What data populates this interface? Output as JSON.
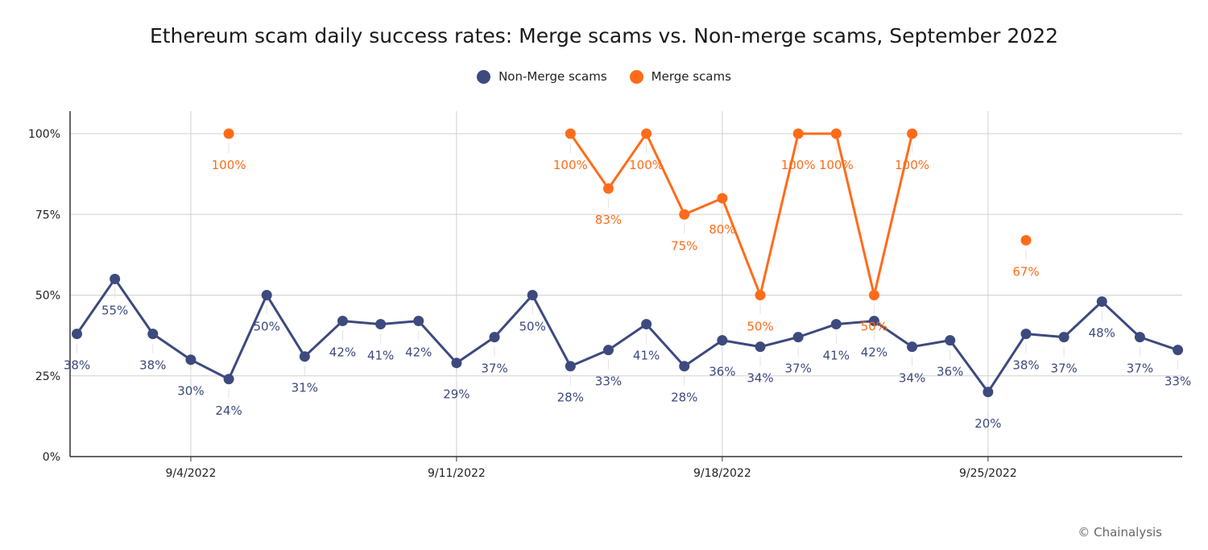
{
  "chart_data": {
    "type": "line",
    "title": "Ethereum scam daily success rates: Merge scams vs. Non-merge scams, September 2022",
    "xlabel": "",
    "ylabel": "",
    "x": [
      "9/1/2022",
      "9/2/2022",
      "9/3/2022",
      "9/4/2022",
      "9/5/2022",
      "9/6/2022",
      "9/7/2022",
      "9/8/2022",
      "9/9/2022",
      "9/10/2022",
      "9/11/2022",
      "9/12/2022",
      "9/13/2022",
      "9/14/2022",
      "9/15/2022",
      "9/16/2022",
      "9/17/2022",
      "9/18/2022",
      "9/19/2022",
      "9/20/2022",
      "9/21/2022",
      "9/22/2022",
      "9/23/2022",
      "9/24/2022",
      "9/25/2022",
      "9/26/2022",
      "9/27/2022",
      "9/28/2022",
      "9/29/2022",
      "9/30/2022"
    ],
    "x_ticks": [
      "9/4/2022",
      "9/11/2022",
      "9/18/2022",
      "9/25/2022"
    ],
    "y_ticks": [
      "0%",
      "25%",
      "50%",
      "75%",
      "100%"
    ],
    "ylim": [
      0,
      100
    ],
    "grid": true,
    "legend_position": "top-center",
    "series": [
      {
        "name": "Non-Merge scams",
        "color": "#3d4a7e",
        "values": [
          38,
          55,
          38,
          30,
          24,
          50,
          31,
          42,
          41,
          42,
          29,
          37,
          50,
          28,
          33,
          41,
          28,
          36,
          34,
          37,
          41,
          42,
          34,
          36,
          20,
          38,
          37,
          48,
          37,
          33
        ]
      },
      {
        "name": "Merge scams",
        "color": "#ff6b1a",
        "values": [
          null,
          null,
          null,
          null,
          100,
          null,
          null,
          null,
          null,
          null,
          null,
          null,
          null,
          100,
          83,
          100,
          75,
          80,
          50,
          100,
          100,
          50,
          100,
          null,
          null,
          67,
          null,
          null,
          null,
          null
        ]
      }
    ]
  },
  "credit": "© Chainalysis"
}
